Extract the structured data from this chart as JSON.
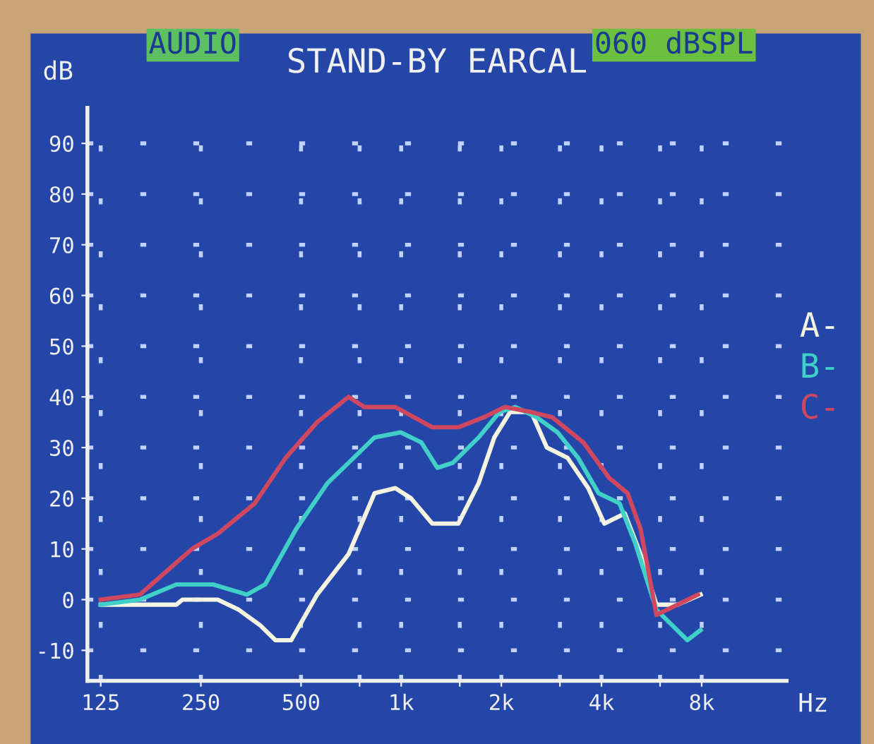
{
  "chart_data": {
    "type": "line",
    "title": "STAND-BY EARCAL",
    "xlabel": "Hz",
    "ylabel": "dB",
    "annotations": [
      "AUDIO",
      "060 dBSPL"
    ],
    "log": "x",
    "xlim": [
      114,
      14400
    ],
    "ylim": [
      -16,
      97
    ],
    "xticks": [
      125,
      250,
      500,
      {
        "value": 750,
        "label": null
      },
      {
        "value": 1000,
        "label": "1k"
      },
      {
        "value": 1500,
        "label": null
      },
      {
        "value": 2000,
        "label": "2k"
      },
      {
        "value": 3000,
        "label": null
      },
      {
        "value": 4000,
        "label": "4k"
      },
      {
        "value": 6000,
        "label": null
      },
      {
        "value": 8000,
        "label": "8k"
      }
    ],
    "yticks": [
      -10,
      0,
      10,
      20,
      30,
      40,
      50,
      60,
      70,
      80,
      90
    ],
    "grid": true,
    "legend": "right",
    "marker": "none",
    "line_style": "solid",
    "series": [
      {
        "name": "A-",
        "color": "#f4f4e0",
        "x": [
          125,
          211,
          220,
          281,
          325,
          376,
          419,
          467,
          559,
          695,
          832,
          960,
          1070,
          1240,
          1485,
          1710,
          1905,
          2125,
          2460,
          2740,
          3160,
          3650,
          4080,
          4700,
          5240,
          5850,
          6760,
          7940
        ],
        "values": [
          -1,
          -1,
          0,
          0,
          -2,
          -5,
          -8,
          -8,
          1,
          9,
          21,
          22,
          20,
          15,
          15,
          23,
          32,
          37,
          37,
          30,
          28,
          22,
          15,
          17,
          9,
          -1,
          -1,
          1
        ]
      },
      {
        "name": "B-",
        "color": "#40d0c8",
        "x": [
          125,
          164,
          211,
          272,
          344,
          390,
          484,
          601,
          695,
          832,
          996,
          1150,
          1285,
          1430,
          1710,
          1975,
          2200,
          2550,
          2950,
          3400,
          3920,
          4530,
          5060,
          5850,
          7250,
          7940
        ],
        "values": [
          -1,
          0,
          3,
          3,
          1,
          3,
          14,
          23,
          27,
          32,
          33,
          31,
          26,
          27,
          32,
          37,
          38,
          36,
          33,
          28,
          21,
          19,
          11,
          -2,
          -8,
          -6
        ]
      },
      {
        "name": "C-",
        "color": "#d04860",
        "x": [
          125,
          164,
          235,
          281,
          363,
          450,
          559,
          695,
          774,
          960,
          1240,
          1485,
          1775,
          2050,
          2460,
          2840,
          3530,
          4220,
          4790,
          5240,
          5850,
          6760,
          7790
        ],
        "values": [
          0,
          1,
          10,
          13,
          19,
          28,
          35,
          40,
          38,
          38,
          34,
          34,
          36,
          38,
          37,
          36,
          31,
          24,
          21,
          14,
          -3,
          -1,
          1
        ]
      }
    ]
  }
}
